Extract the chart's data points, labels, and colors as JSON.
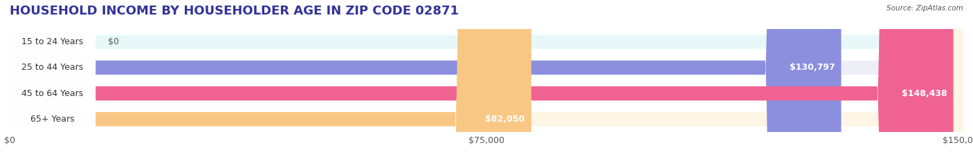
{
  "title": "HOUSEHOLD INCOME BY HOUSEHOLDER AGE IN ZIP CODE 02871",
  "source": "Source: ZipAtlas.com",
  "categories": [
    "15 to 24 Years",
    "25 to 44 Years",
    "45 to 64 Years",
    "65+ Years"
  ],
  "values": [
    0,
    130797,
    148438,
    82050
  ],
  "bar_colors": [
    "#5ecfcc",
    "#8b8fde",
    "#f06292",
    "#f9c784"
  ],
  "bg_colors": [
    "#e8f8f8",
    "#eeeef8",
    "#fde8f0",
    "#fef5e4"
  ],
  "value_labels": [
    "$0",
    "$130,797",
    "$148,438",
    "$82,050"
  ],
  "x_ticks": [
    0,
    75000,
    150000
  ],
  "x_tick_labels": [
    "$0",
    "$75,000",
    "$150,000"
  ],
  "xlim": [
    0,
    150000
  ],
  "title_fontsize": 13,
  "label_fontsize": 9,
  "bar_height": 0.55,
  "background_color": "#ffffff"
}
